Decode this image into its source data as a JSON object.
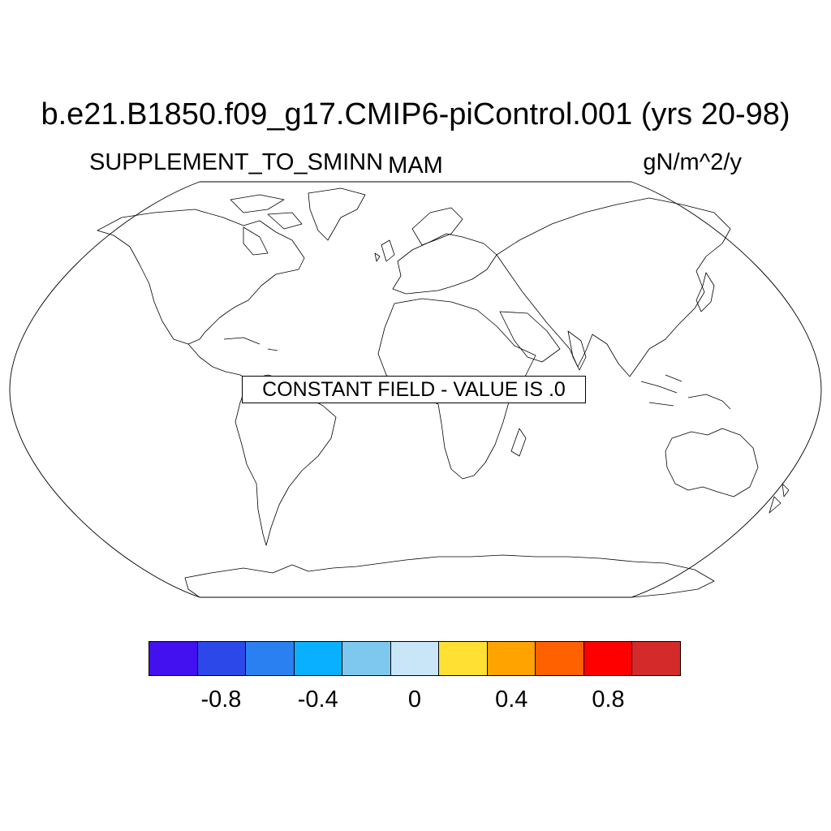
{
  "titles": {
    "main": "b.e21.B1850.f09_g17.CMIP6-piControl.001 (yrs 20-98)",
    "left": "SUPPLEMENT_TO_SMINN",
    "center": "MAM",
    "right": "gN/m^2/y"
  },
  "annotation": "CONSTANT FIELD - VALUE IS .0",
  "colorbar": {
    "colors": [
      "#4310f0",
      "#2d48e8",
      "#2a80f0",
      "#08b0ff",
      "#7ec8f0",
      "#c8e6f8",
      "#ffe033",
      "#ffa300",
      "#ff6000",
      "#ff0000",
      "#d42a2a"
    ],
    "tick_labels": [
      "-0.8",
      "-0.4",
      "0",
      "0.4",
      "0.8"
    ],
    "tick_values": [
      -0.8,
      -0.4,
      0,
      0.4,
      0.8
    ],
    "range": [
      -1.1,
      1.1
    ]
  },
  "map": {
    "projection": "Robinson",
    "field_value": 0
  }
}
